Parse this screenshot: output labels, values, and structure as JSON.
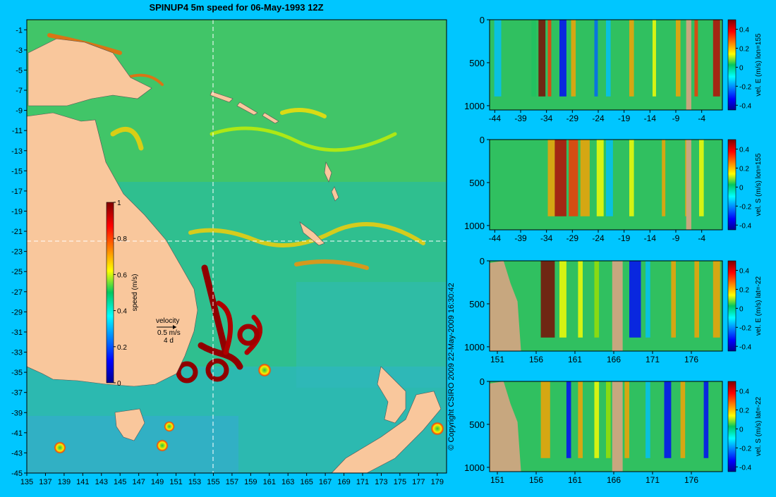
{
  "title": "SPINUP4 5m speed for 06-May-1993 12Z",
  "copyright": "© Copyright CSIRO 2009   22-May-2009 16:30:42",
  "colors": {
    "background": "#00c6ff",
    "land": "#f9c79c",
    "land_profile": "#c7a77f",
    "section_line": "#ffffff"
  },
  "chart_data": [
    {
      "type": "heatmap",
      "title": "SPINUP4 5m speed for 06-May-1993 12Z",
      "x_ticks": [
        "135",
        "137",
        "139",
        "141",
        "143",
        "145",
        "147",
        "149",
        "151",
        "153",
        "155",
        "157",
        "159",
        "161",
        "163",
        "165",
        "167",
        "169",
        "171",
        "173",
        "175",
        "177",
        "179"
      ],
      "y_ticks": [
        "-1",
        "-3",
        "-5",
        "-7",
        "-9",
        "-11",
        "-13",
        "-15",
        "-17",
        "-19",
        "-21",
        "-23",
        "-25",
        "-27",
        "-29",
        "-31",
        "-33",
        "-35",
        "-37",
        "-39",
        "-41",
        "-43",
        "-45"
      ],
      "xlim": [
        135,
        180
      ],
      "ylim": [
        -45,
        0
      ],
      "section_lines": {
        "lon": 155,
        "lat": -22
      },
      "colorbar": {
        "label": "speed (m/s)",
        "ticks": [
          "0",
          "0.2",
          "0.4",
          "0.6",
          "0.8",
          "1"
        ],
        "range": [
          0,
          1
        ]
      },
      "velocity_key": {
        "title": "velocity",
        "speed": "0.5 m/s",
        "time": "4 d"
      }
    },
    {
      "type": "heatmap",
      "x_ticks": [
        "-44",
        "-39",
        "-34",
        "-29",
        "-24",
        "-19",
        "-14",
        "-9",
        "-4"
      ],
      "y_ticks": [
        "0",
        "500",
        "1000"
      ],
      "xlim": [
        -45,
        0
      ],
      "ylim": [
        1050,
        0
      ],
      "colorbar": {
        "label": "vel. E (m/s) lon=155",
        "ticks": [
          "-0.4",
          "-0.2",
          "0",
          "0.2",
          "0.4"
        ],
        "range": [
          -0.45,
          0.5
        ]
      }
    },
    {
      "type": "heatmap",
      "x_ticks": [
        "-44",
        "-39",
        "-34",
        "-29",
        "-24",
        "-19",
        "-14",
        "-9",
        "-4"
      ],
      "y_ticks": [
        "0",
        "500",
        "1000"
      ],
      "xlim": [
        -45,
        0
      ],
      "ylim": [
        1050,
        0
      ],
      "colorbar": {
        "label": "vel. S (m/s) lon=155",
        "ticks": [
          "-0.4",
          "-0.2",
          "0",
          "0.2",
          "0.4"
        ],
        "range": [
          -0.45,
          0.5
        ]
      }
    },
    {
      "type": "heatmap",
      "x_ticks": [
        "151",
        "156",
        "161",
        "166",
        "171",
        "176"
      ],
      "y_ticks": [
        "0",
        "500",
        "1000"
      ],
      "xlim": [
        150,
        180
      ],
      "ylim": [
        1050,
        0
      ],
      "colorbar": {
        "label": "vel. E (m/s) lat=-22",
        "ticks": [
          "-0.4",
          "-0.2",
          "0",
          "0.2",
          "0.4"
        ],
        "range": [
          -0.45,
          0.5
        ]
      }
    },
    {
      "type": "heatmap",
      "x_ticks": [
        "151",
        "156",
        "161",
        "166",
        "171",
        "176"
      ],
      "y_ticks": [
        "0",
        "500",
        "1000"
      ],
      "xlim": [
        150,
        180
      ],
      "ylim": [
        1050,
        0
      ],
      "colorbar": {
        "label": "vel. S (m/s) lat=-22",
        "ticks": [
          "-0.4",
          "-0.2",
          "0",
          "0.2",
          "0.4"
        ],
        "range": [
          -0.45,
          0.5
        ]
      }
    }
  ]
}
